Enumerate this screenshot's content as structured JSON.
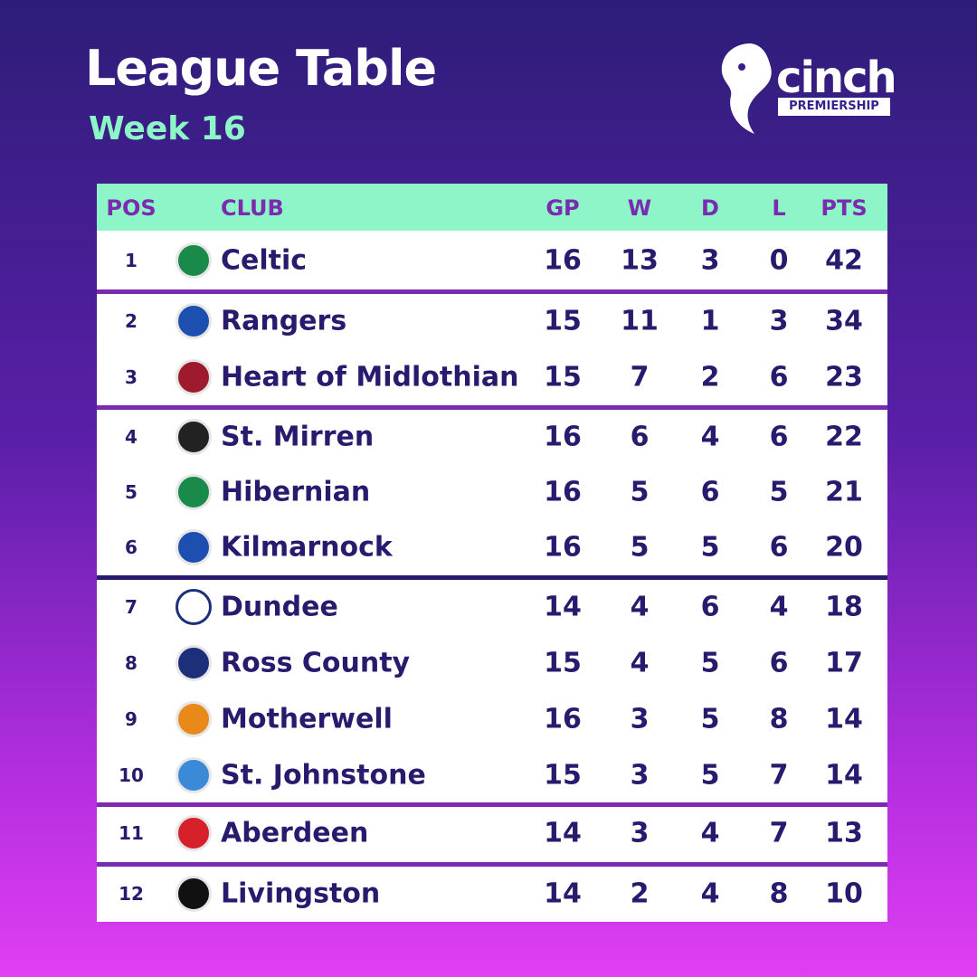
{
  "header": {
    "title": "League Table",
    "subtitle": "Week 16"
  },
  "logo": {
    "brand": "cinch",
    "league": "PREMIERSHIP"
  },
  "table": {
    "columns": [
      "POS",
      "CLUB",
      "GP",
      "W",
      "D",
      "L",
      "PTS"
    ],
    "rows": [
      [
        1,
        "Celtic",
        16,
        13,
        3,
        0,
        42
      ],
      [
        2,
        "Rangers",
        15,
        11,
        1,
        3,
        34
      ],
      [
        3,
        "Heart of Midlothian",
        15,
        7,
        2,
        6,
        23
      ],
      [
        4,
        "St. Mirren",
        16,
        6,
        4,
        6,
        22
      ],
      [
        5,
        "Hibernian",
        16,
        5,
        6,
        5,
        21
      ],
      [
        6,
        "Kilmarnock",
        16,
        5,
        5,
        6,
        20
      ],
      [
        7,
        "Dundee",
        14,
        4,
        6,
        4,
        18
      ],
      [
        8,
        "Ross County",
        15,
        4,
        5,
        6,
        17
      ],
      [
        9,
        "Motherwell",
        16,
        3,
        5,
        8,
        14
      ],
      [
        10,
        "St. Johnstone",
        15,
        3,
        5,
        7,
        14
      ],
      [
        11,
        "Aberdeen",
        14,
        3,
        4,
        7,
        13
      ],
      [
        12,
        "Livingston",
        14,
        2,
        4,
        8,
        10
      ]
    ]
  }
}
